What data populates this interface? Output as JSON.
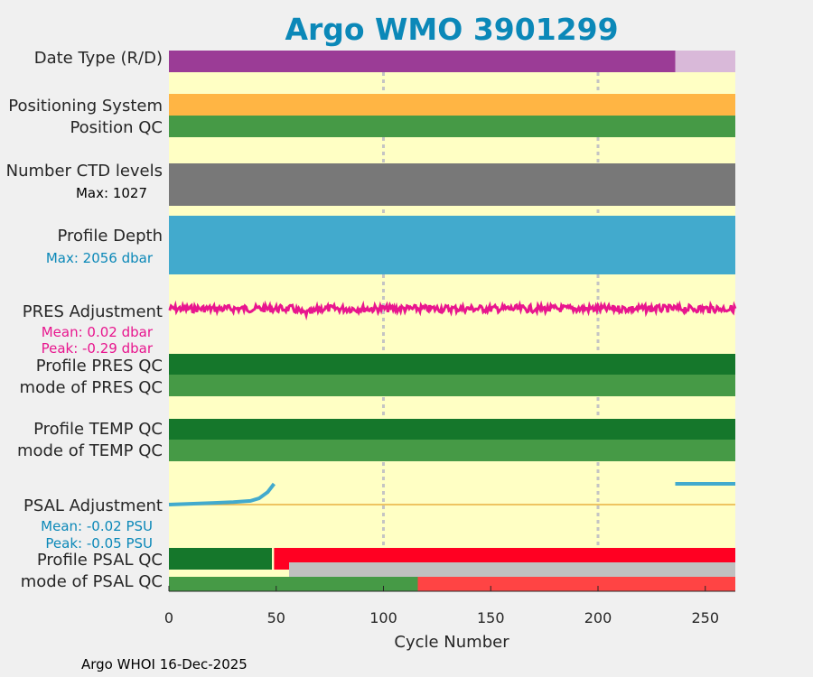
{
  "chart_data": {
    "type": "bar",
    "title": "Argo WMO 3901299",
    "xlabel": "Cycle Number",
    "xlim": [
      0,
      264
    ],
    "xticks": [
      0,
      50,
      100,
      150,
      200,
      250
    ],
    "grid_x": [
      100,
      200
    ],
    "footer": "Argo WHOI 16-Dec-2025",
    "row_labels": {
      "date_type": "Date Type (R/D)",
      "positioning": "Positioning System",
      "position_qc": "Position QC",
      "ctd_levels": "Number CTD levels",
      "ctd_max": "Max: 1027",
      "profile_depth": "Profile Depth",
      "depth_max": "Max: 2056 dbar",
      "pres_adj": "PRES Adjustment",
      "pres_mean": "Mean: 0.02 dbar",
      "pres_peak": "Peak: -0.29 dbar",
      "profile_pres_qc": "Profile PRES QC",
      "mode_pres_qc": "mode of PRES QC",
      "profile_temp_qc": "Profile TEMP QC",
      "mode_temp_qc": "mode of TEMP QC",
      "psal_adj": "PSAL Adjustment",
      "psal_mean": "Mean: -0.02 PSU",
      "psal_peak": "Peak: -0.05 PSU",
      "profile_psal_qc": "Profile PSAL QC",
      "mode_psal_qc": "mode of PSAL QC"
    },
    "date_type": [
      {
        "state": "R",
        "from": 0,
        "to": 236
      },
      {
        "state": "D",
        "from": 236,
        "to": 264
      }
    ],
    "positioning_system": [
      {
        "from": 0,
        "to": 264
      }
    ],
    "position_qc": [
      {
        "from": 0,
        "to": 264
      }
    ],
    "ctd_levels_max": 1027,
    "profile_depth_max": 2056,
    "pres_adjustment_mean": 0.02,
    "pres_adjustment_peak": -0.29,
    "profile_pres_qc": [
      {
        "from": 0,
        "to": 264
      }
    ],
    "mode_pres_qc": [
      {
        "from": 0,
        "to": 264
      }
    ],
    "profile_temp_qc": [
      {
        "from": 0,
        "to": 264
      }
    ],
    "mode_temp_qc": [
      {
        "from": 0,
        "to": 264
      }
    ],
    "psal_adjustment_mean": -0.02,
    "psal_adjustment_peak": -0.05,
    "psal_adjustment": [
      {
        "x": 0,
        "y": 0.0
      },
      {
        "x": 10,
        "y": -0.002
      },
      {
        "x": 20,
        "y": -0.004
      },
      {
        "x": 30,
        "y": -0.006
      },
      {
        "x": 38,
        "y": -0.009
      },
      {
        "x": 42,
        "y": -0.015
      },
      {
        "x": 46,
        "y": -0.03
      },
      {
        "x": 49,
        "y": -0.05
      }
    ],
    "psal_adjustment_late": [
      {
        "x": 236,
        "y": -0.05
      },
      {
        "x": 264,
        "y": -0.05
      }
    ],
    "profile_psal_qc": [
      {
        "grade": "A",
        "from": 0,
        "to": 48
      },
      {
        "grade": "F",
        "from": 49,
        "to": 264
      }
    ],
    "mode_psal_qc": [
      {
        "flag": "1",
        "from": 0,
        "to": 116
      },
      {
        "flag": "4",
        "from": 116,
        "to": 264
      }
    ],
    "psal_qc_gray_band": [
      {
        "from": 56,
        "to": 264
      }
    ],
    "colors": {
      "bg": "#ffffc4",
      "realtime": "#9b3c96",
      "delayed": "#d9b9d9",
      "positioning": "#ffb544",
      "good": "#469a46",
      "dark_good": "#15772b",
      "ctd": "#787878",
      "depth": "#42aacd",
      "pres": "#e8168e",
      "psal": "#42aacd",
      "bad": "#ff0022",
      "mode_bad": "#ff4444",
      "gray": "#c0c0c0",
      "title": "#0b88b8",
      "zero_line": "#e8b040",
      "grid": "#c4c4c4"
    }
  }
}
